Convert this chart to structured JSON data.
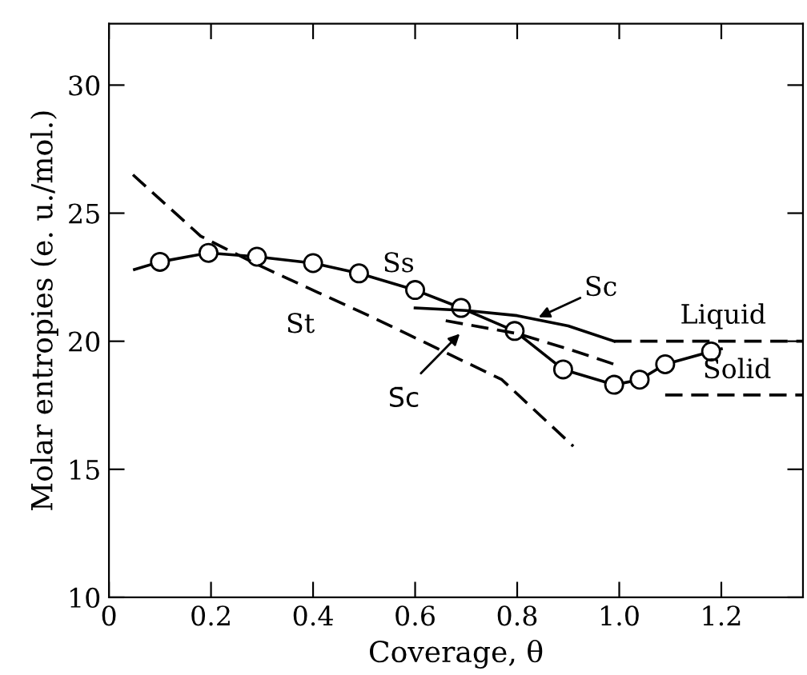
{
  "chart_data": {
    "type": "line",
    "xlabel": "Coverage, θ",
    "ylabel": "Molar entropies (e. u./mol.)",
    "xlim": [
      0,
      1.36
    ],
    "ylim": [
      10,
      32.4
    ],
    "xticks": [
      0,
      0.2,
      0.4,
      0.6,
      0.8,
      {
        "value": 1.0,
        "label": "1.0"
      },
      1.2
    ],
    "yticks": [
      10,
      15,
      20,
      25,
      30
    ],
    "grid": false,
    "legend": false,
    "series": [
      {
        "name": "Ss",
        "color": "#000000",
        "marker": "circle",
        "line_style": "solid",
        "x": [
          0.05,
          0.1,
          0.195,
          0.29,
          0.4,
          0.49,
          0.6,
          0.69,
          0.795,
          0.89,
          0.99,
          1.04,
          1.09,
          1.18,
          1.2
        ],
        "values": [
          22.8,
          23.1,
          23.45,
          23.3,
          23.05,
          22.65,
          22.0,
          21.3,
          20.4,
          18.9,
          18.3,
          18.5,
          19.1,
          19.6,
          19.7
        ]
      },
      {
        "name": "St",
        "color": "#000000",
        "marker": "none",
        "line_style": "dashed",
        "x": [
          0.047,
          0.18,
          0.29,
          0.41,
          0.52,
          0.64,
          0.77,
          0.91
        ],
        "values": [
          26.5,
          24.1,
          23.0,
          21.9,
          20.9,
          19.75,
          18.5,
          15.9
        ]
      },
      {
        "name": "Sc",
        "color": "#000000",
        "marker": "none",
        "line_style": "solid",
        "x": [
          0.6,
          0.7,
          0.8,
          0.9,
          0.99
        ],
        "values": [
          21.3,
          21.2,
          21.0,
          20.6,
          20.0
        ]
      },
      {
        "color": "#000000",
        "marker": "none",
        "line_style": "dashed",
        "x": [
          0.66,
          0.8,
          0.9,
          0.99
        ],
        "values": [
          20.8,
          20.3,
          19.7,
          19.1
        ]
      },
      {
        "color": "#000000",
        "marker": "none",
        "line_style": "dashed",
        "x": [
          0.99,
          1.36
        ],
        "values": [
          20.0,
          20.0
        ]
      },
      {
        "color": "#000000",
        "marker": "none",
        "line_style": "dashed",
        "x": [
          1.09,
          1.36
        ],
        "values": [
          17.9,
          17.9
        ]
      }
    ],
    "annotations": [
      "Liquid",
      "Solid",
      "S̄c"
    ]
  }
}
